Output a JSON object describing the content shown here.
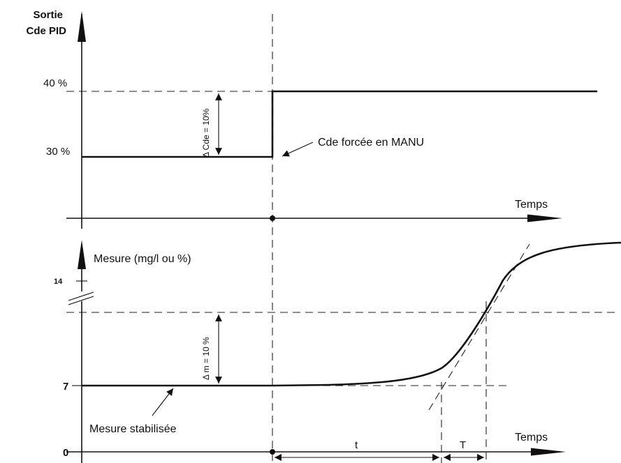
{
  "top_chart": {
    "y_title_line1": "Sortie",
    "y_title_line2": "Cde PID",
    "tick_40": "40 %",
    "tick_30": "30 %",
    "delta_label": "Δ Cde = 10%",
    "annotation": "Cde forcée en MANU",
    "x_label": "Temps"
  },
  "bottom_chart": {
    "y_title": "Mesure (mg/l ou %)",
    "tick_14": "14",
    "tick_7": "7",
    "tick_0": "0",
    "delta_label": "Δ m = 10 %",
    "annotation": "Mesure stabilisée",
    "t_label": "t",
    "T_label": "T",
    "x_label": "Temps"
  }
}
